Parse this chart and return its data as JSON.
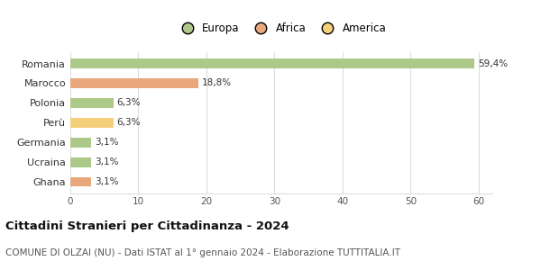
{
  "categories": [
    "Romania",
    "Marocco",
    "Polonia",
    "Perù",
    "Germania",
    "Ucraina",
    "Ghana"
  ],
  "values": [
    59.4,
    18.8,
    6.3,
    6.3,
    3.1,
    3.1,
    3.1
  ],
  "labels": [
    "59,4%",
    "18,8%",
    "6,3%",
    "6,3%",
    "3,1%",
    "3,1%",
    "3,1%"
  ],
  "colors": [
    "#adc98a",
    "#e8a87c",
    "#adc98a",
    "#f5d07a",
    "#adc98a",
    "#adc98a",
    "#e8a87c"
  ],
  "legend": [
    {
      "label": "Europa",
      "color": "#adc98a"
    },
    {
      "label": "Africa",
      "color": "#e8a87c"
    },
    {
      "label": "America",
      "color": "#f5d07a"
    }
  ],
  "xlim": [
    0,
    62
  ],
  "xticks": [
    0,
    10,
    20,
    30,
    40,
    50,
    60
  ],
  "title": "Cittadini Stranieri per Cittadinanza - 2024",
  "subtitle": "COMUNE DI OLZAI (NU) - Dati ISTAT al 1° gennaio 2024 - Elaborazione TUTTITALIA.IT",
  "title_fontsize": 9.5,
  "subtitle_fontsize": 7.5,
  "background_color": "#ffffff",
  "grid_color": "#dddddd",
  "bar_height": 0.5
}
